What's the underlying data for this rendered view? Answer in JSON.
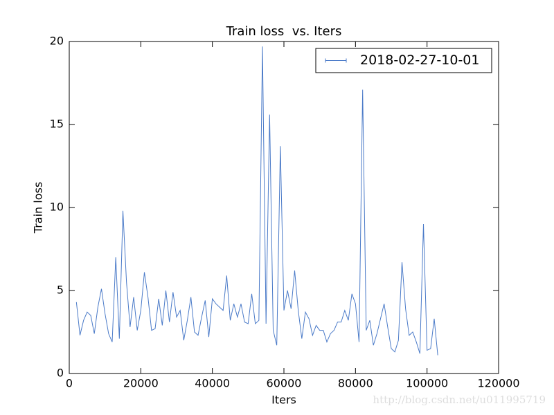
{
  "chart_data": {
    "type": "line",
    "title": "Train loss  vs. Iters",
    "xlabel": "Iters",
    "ylabel": "Train loss",
    "x": [
      2000,
      3000,
      4000,
      5000,
      6000,
      7000,
      8000,
      9000,
      10000,
      11000,
      12000,
      13000,
      14000,
      15000,
      16000,
      17000,
      18000,
      19000,
      20000,
      21000,
      22000,
      23000,
      24000,
      25000,
      26000,
      27000,
      28000,
      29000,
      30000,
      31000,
      32000,
      33000,
      34000,
      35000,
      36000,
      37000,
      38000,
      39000,
      40000,
      41000,
      42000,
      43000,
      44000,
      45000,
      46000,
      47000,
      48000,
      49000,
      50000,
      51000,
      52000,
      53000,
      54000,
      55000,
      56000,
      57000,
      58000,
      59000,
      60000,
      61000,
      62000,
      63000,
      64000,
      65000,
      66000,
      67000,
      68000,
      69000,
      70000,
      71000,
      72000,
      73000,
      74000,
      75000,
      76000,
      77000,
      78000,
      79000,
      80000,
      81000,
      82000,
      83000,
      84000,
      85000,
      86000,
      87000,
      88000,
      89000,
      90000,
      91000,
      92000,
      93000,
      94000,
      95000,
      96000,
      97000,
      98000,
      99000,
      100000,
      101000,
      102000,
      103000
    ],
    "series": [
      {
        "name": "2018-02-27-10-01",
        "color": "#4a7ac8",
        "values": [
          4.3,
          2.3,
          3.2,
          3.7,
          3.5,
          2.4,
          4.0,
          5.1,
          3.6,
          2.4,
          1.9,
          7.0,
          2.1,
          9.8,
          5.5,
          2.8,
          4.6,
          2.6,
          3.8,
          6.1,
          4.6,
          2.6,
          2.7,
          4.5,
          2.9,
          5.0,
          3.1,
          4.9,
          3.4,
          3.8,
          2.0,
          3.2,
          4.6,
          2.5,
          2.3,
          3.4,
          4.4,
          2.2,
          4.5,
          4.2,
          4.0,
          3.8,
          5.9,
          3.2,
          4.2,
          3.4,
          4.2,
          3.1,
          3.0,
          4.8,
          3.0,
          3.2,
          19.7,
          3.0,
          15.6,
          2.6,
          1.7,
          13.7,
          3.8,
          5.0,
          3.9,
          6.2,
          3.8,
          2.1,
          3.7,
          3.3,
          2.3,
          2.9,
          2.6,
          2.6,
          1.9,
          2.4,
          2.6,
          3.1,
          3.1,
          3.8,
          3.2,
          4.8,
          4.2,
          1.9,
          17.1,
          2.6,
          3.2,
          1.7,
          2.4,
          3.3,
          4.2,
          2.8,
          1.5,
          1.3,
          2.0,
          6.7,
          3.9,
          2.3,
          2.5,
          1.9,
          1.2,
          9.0,
          1.4,
          1.5,
          3.3,
          1.1
        ]
      }
    ],
    "xlim": [
      0,
      120000
    ],
    "xticks": [
      0,
      20000,
      40000,
      60000,
      80000,
      100000,
      120000
    ],
    "ylim": [
      0,
      20
    ],
    "yticks": [
      0,
      5,
      10,
      15,
      20
    ],
    "grid": false,
    "legend": "upper right",
    "watermark": "http://blog.csdn.net/u011995719"
  }
}
